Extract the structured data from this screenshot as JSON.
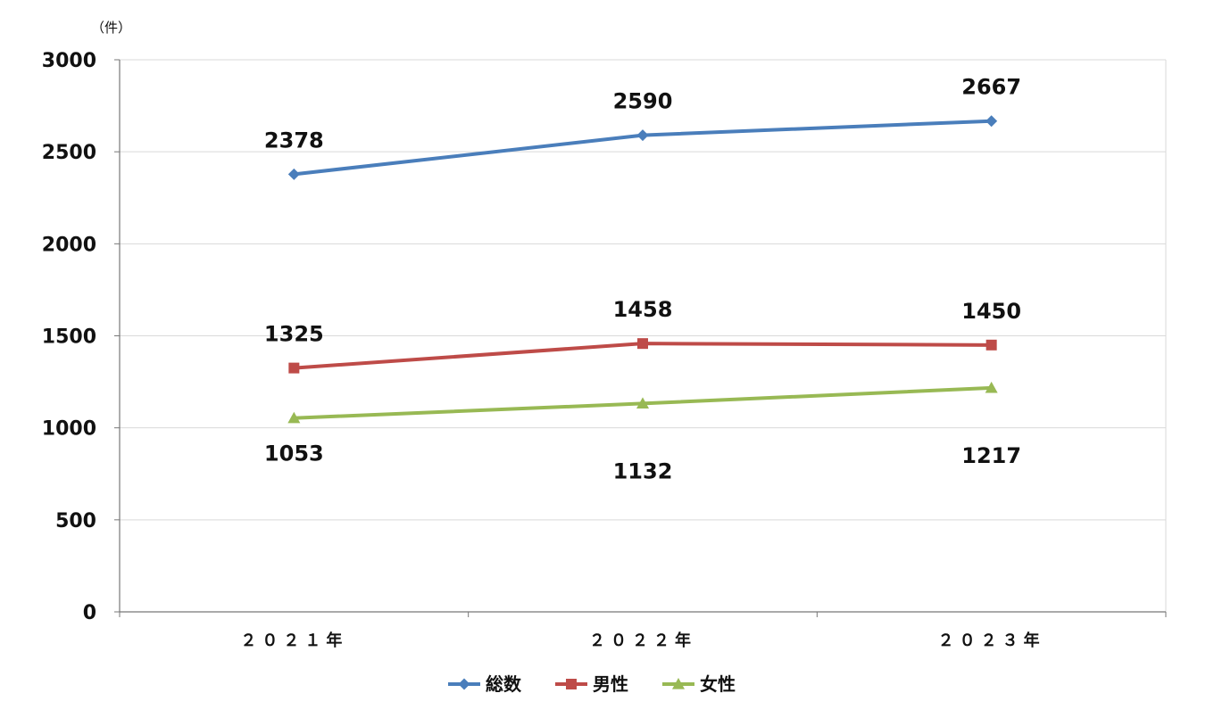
{
  "chart_data": {
    "type": "line",
    "unit_label": "（件）",
    "categories": [
      "２０２１年",
      "２０２２年",
      "２０２３年"
    ],
    "ylim": [
      0,
      3000
    ],
    "yticks": [
      0,
      500,
      1000,
      1500,
      2000,
      2500,
      3000
    ],
    "grid": true,
    "legend_position": "bottom",
    "series": [
      {
        "name": "総数",
        "values": [
          2378,
          2590,
          2667
        ],
        "color": "#4a7ebb",
        "marker": "diamond",
        "label_position": "above"
      },
      {
        "name": "男性",
        "values": [
          1325,
          1458,
          1450
        ],
        "color": "#be4b48",
        "marker": "square",
        "label_position": "above"
      },
      {
        "name": "女性",
        "values": [
          1053,
          1132,
          1217
        ],
        "color": "#98b954",
        "marker": "triangle",
        "label_position": "below"
      }
    ]
  }
}
